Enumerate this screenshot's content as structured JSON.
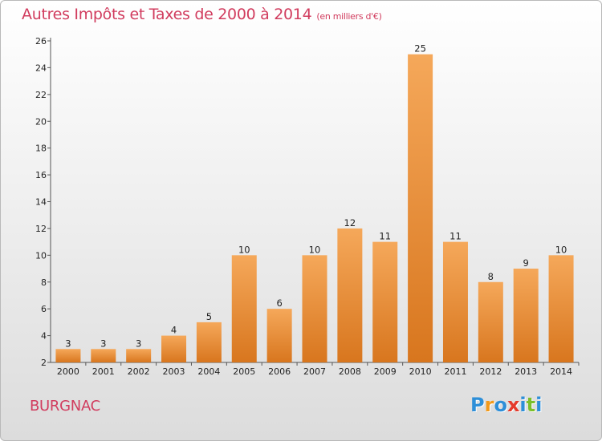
{
  "header": {
    "title": "Autres Impôts et Taxes de 2000 à 2014",
    "subtitle": "(en milliers d'€)"
  },
  "footer": {
    "place": "BURGNAC",
    "logo": [
      "P",
      "r",
      "o",
      "x",
      "i",
      "t",
      "i"
    ],
    "logo_colors": [
      "#2e8fd8",
      "#f29a1b",
      "#2e8fd8",
      "#e53b2c",
      "#2e8fd8",
      "#7cbf2b",
      "#2e8fd8"
    ]
  },
  "colors": {
    "bar_light": "#f5a85a",
    "bar_dark": "#d8761e",
    "title": "#d13c5e"
  },
  "chart_data": {
    "type": "bar",
    "categories": [
      "2000",
      "2001",
      "2002",
      "2003",
      "2004",
      "2005",
      "2006",
      "2007",
      "2008",
      "2009",
      "2010",
      "2011",
      "2012",
      "2013",
      "2014"
    ],
    "values": [
      3,
      3,
      3,
      4,
      5,
      10,
      6,
      10,
      12,
      11,
      25,
      11,
      8,
      9,
      10
    ],
    "title": "Autres Impôts et Taxes de 2000 à 2014",
    "subtitle": "(en milliers d'€)",
    "yticks": [
      2,
      4,
      6,
      8,
      10,
      12,
      14,
      16,
      18,
      20,
      22,
      24,
      26
    ],
    "ylim": [
      2,
      26
    ],
    "grid": false,
    "data_labels": true
  }
}
